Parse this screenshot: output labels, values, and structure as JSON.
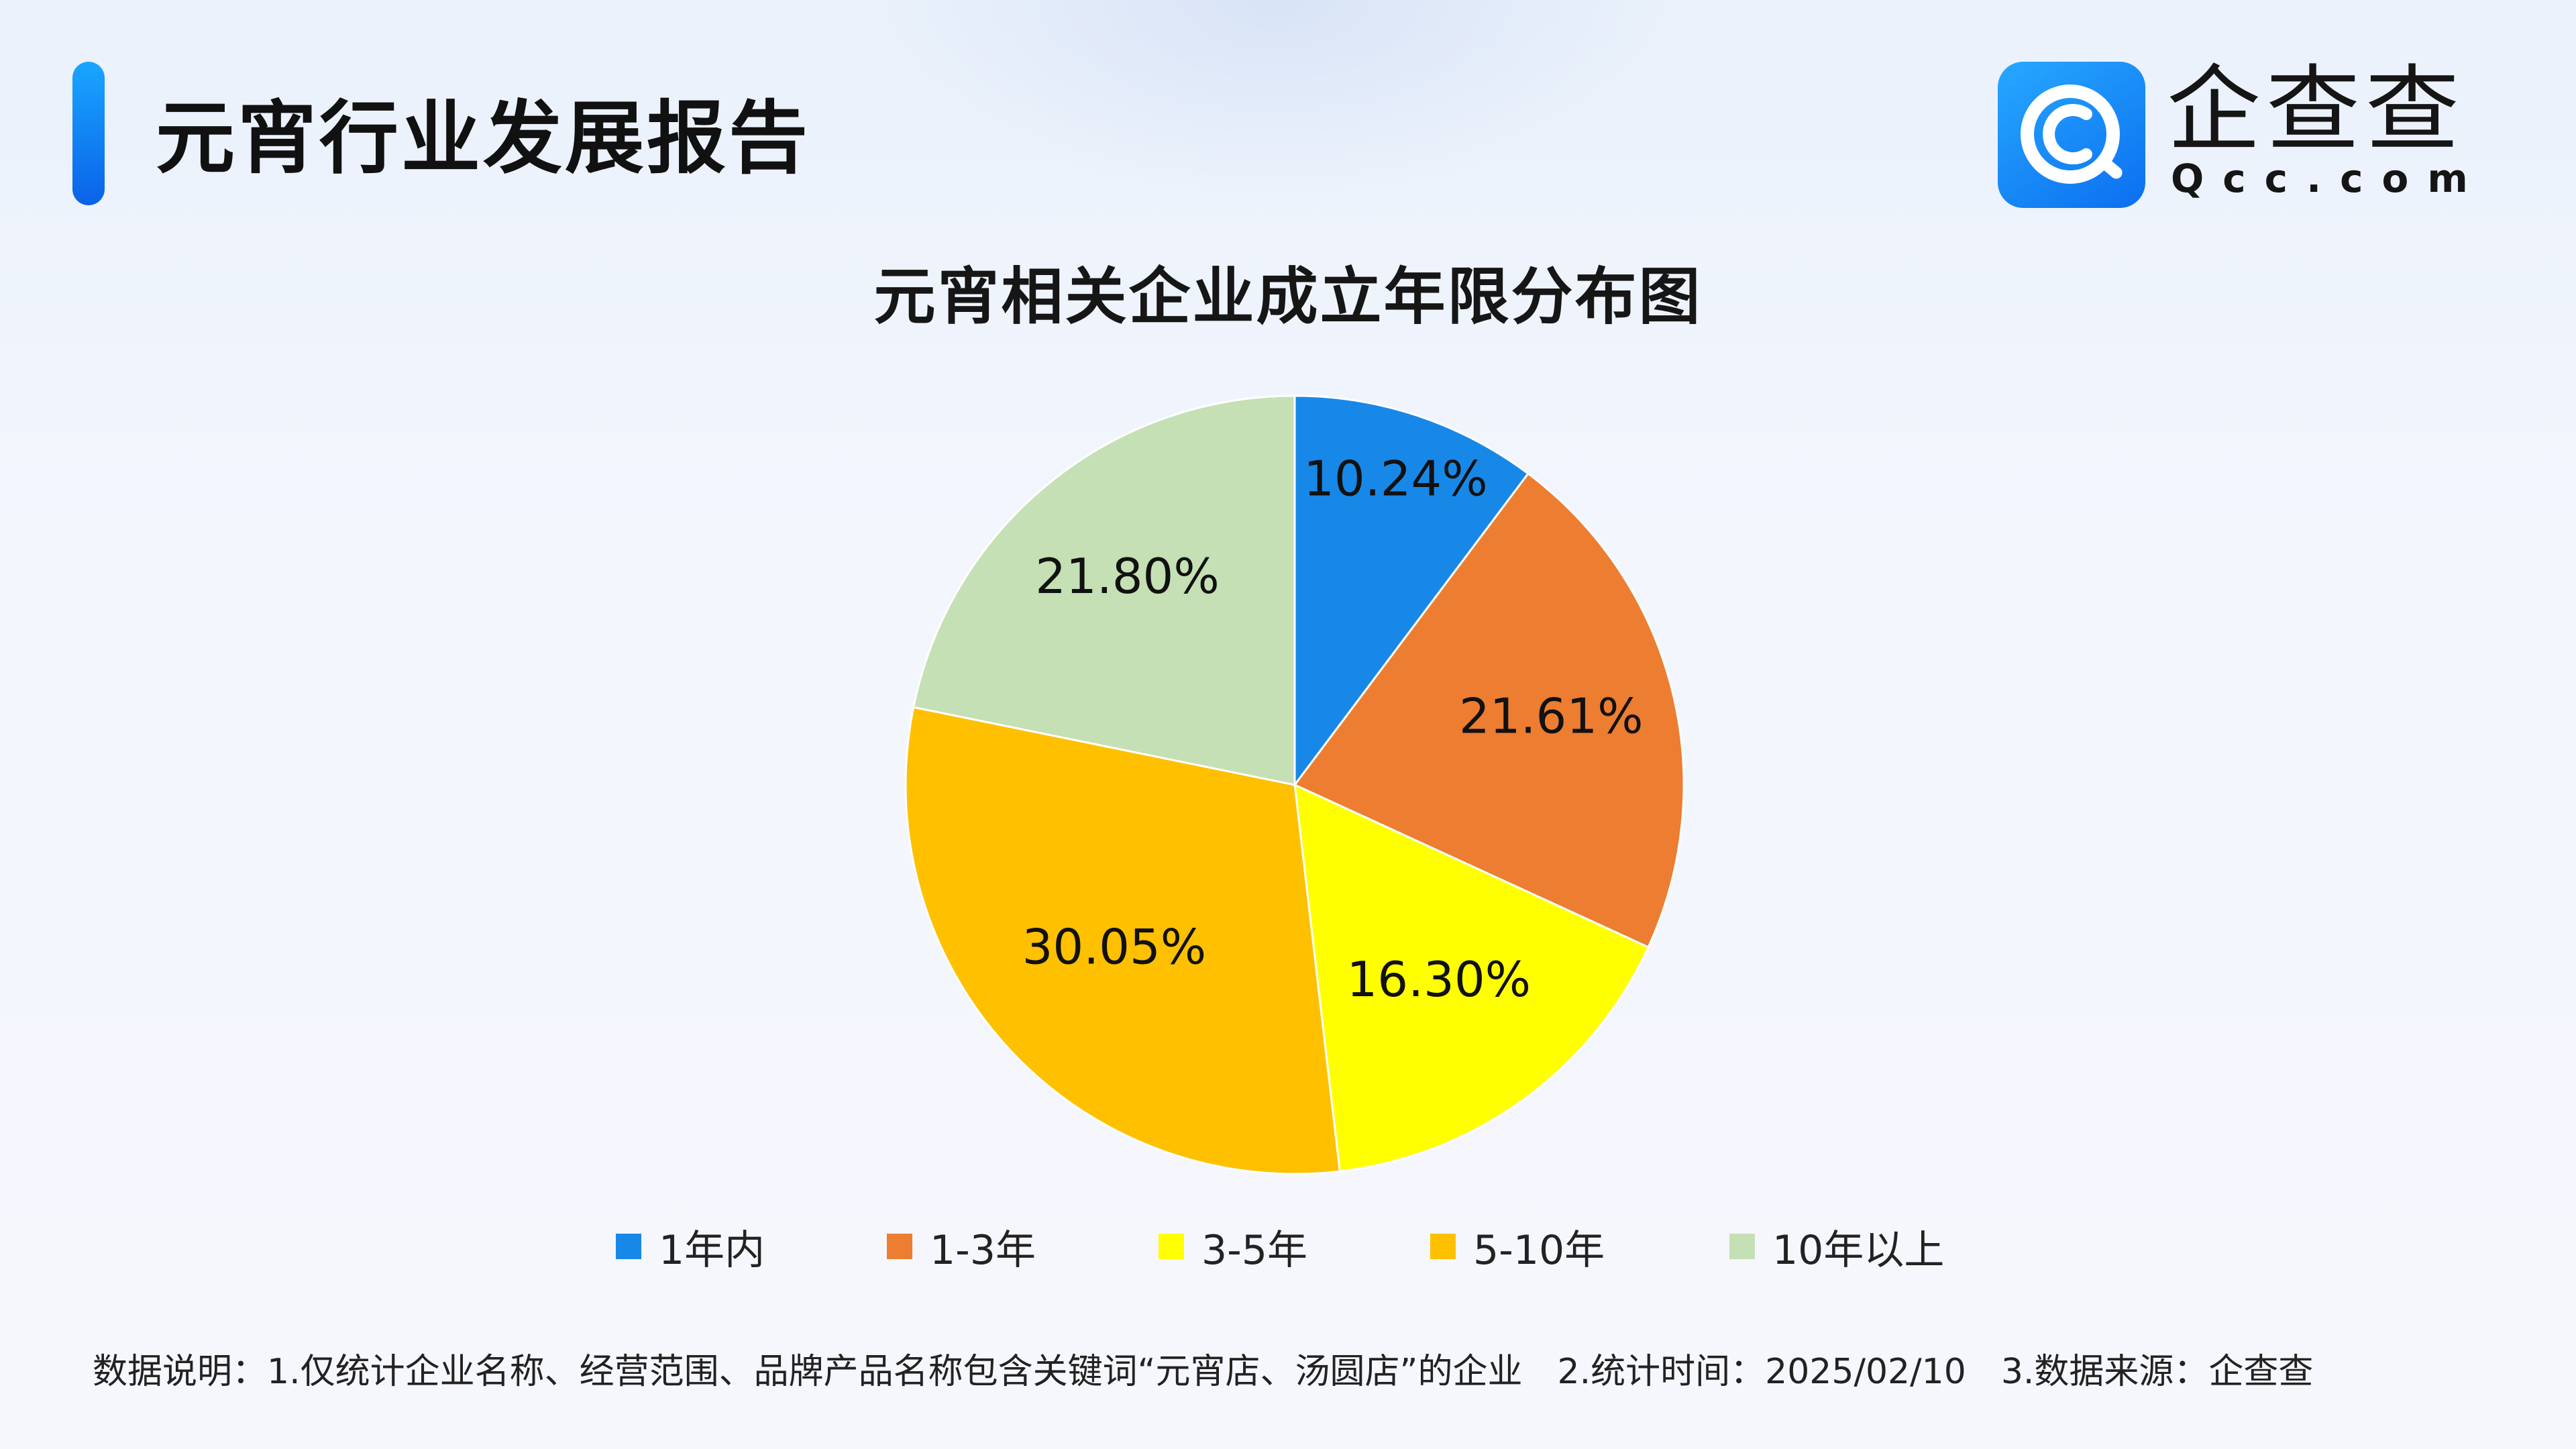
{
  "header": {
    "title": "元宵行业发展报告"
  },
  "brand": {
    "name": "企查查",
    "domain": "Qcc.com",
    "logo_icon": "qcc-logo-icon",
    "logo_color": "#1677ff"
  },
  "chart_data": {
    "type": "pie",
    "title": "元宵相关企业成立年限分布图",
    "categories": [
      "1年内",
      "1-3年",
      "3-5年",
      "5-10年",
      "10年以上"
    ],
    "values": [
      10.24,
      21.61,
      16.3,
      30.05,
      21.8
    ],
    "labels": [
      "10.24%",
      "21.61%",
      "16.30%",
      "30.05%",
      "21.80%"
    ],
    "colors": [
      "#1888e8",
      "#ed7d31",
      "#ffff00",
      "#ffc000",
      "#c5e0b4"
    ],
    "unit": "%",
    "legend_position": "bottom"
  },
  "footer": {
    "note": "数据说明：1.仅统计企业名称、经营范围、品牌产品名称包含关键词“元宵店、汤圆店”的企业　2.统计时间：2025/02/10　3.数据来源：企查查"
  }
}
